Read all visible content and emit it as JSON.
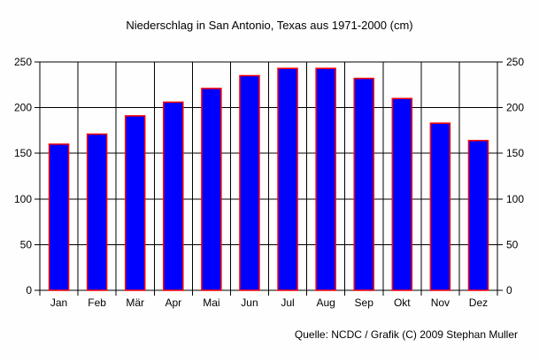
{
  "chart_data": {
    "type": "bar",
    "title": "Niederschlag in San Antonio, Texas aus 1971-2000 (cm)",
    "source": "Quelle: NCDC / Grafik (C) 2009 Stephan Muller",
    "categories": [
      "Jan",
      "Feb",
      "Mär",
      "Apr",
      "Mai",
      "Jun",
      "Jul",
      "Aug",
      "Sep",
      "Okt",
      "Nov",
      "Dez"
    ],
    "values": [
      160,
      171,
      191,
      206,
      221,
      235,
      243,
      243,
      232,
      210,
      183,
      164
    ],
    "xlabel": "",
    "ylabel": "",
    "ylim": [
      0,
      250
    ],
    "yticks": [
      0,
      50,
      100,
      150,
      200,
      250
    ],
    "grid": true,
    "dual_y_axis": true,
    "legend": "none",
    "colors": {
      "bar_fill": "#0000FF",
      "bar_stroke": "#FF0000",
      "grid": "#000000",
      "text": "#000000",
      "background": "#FEFEFE"
    }
  }
}
